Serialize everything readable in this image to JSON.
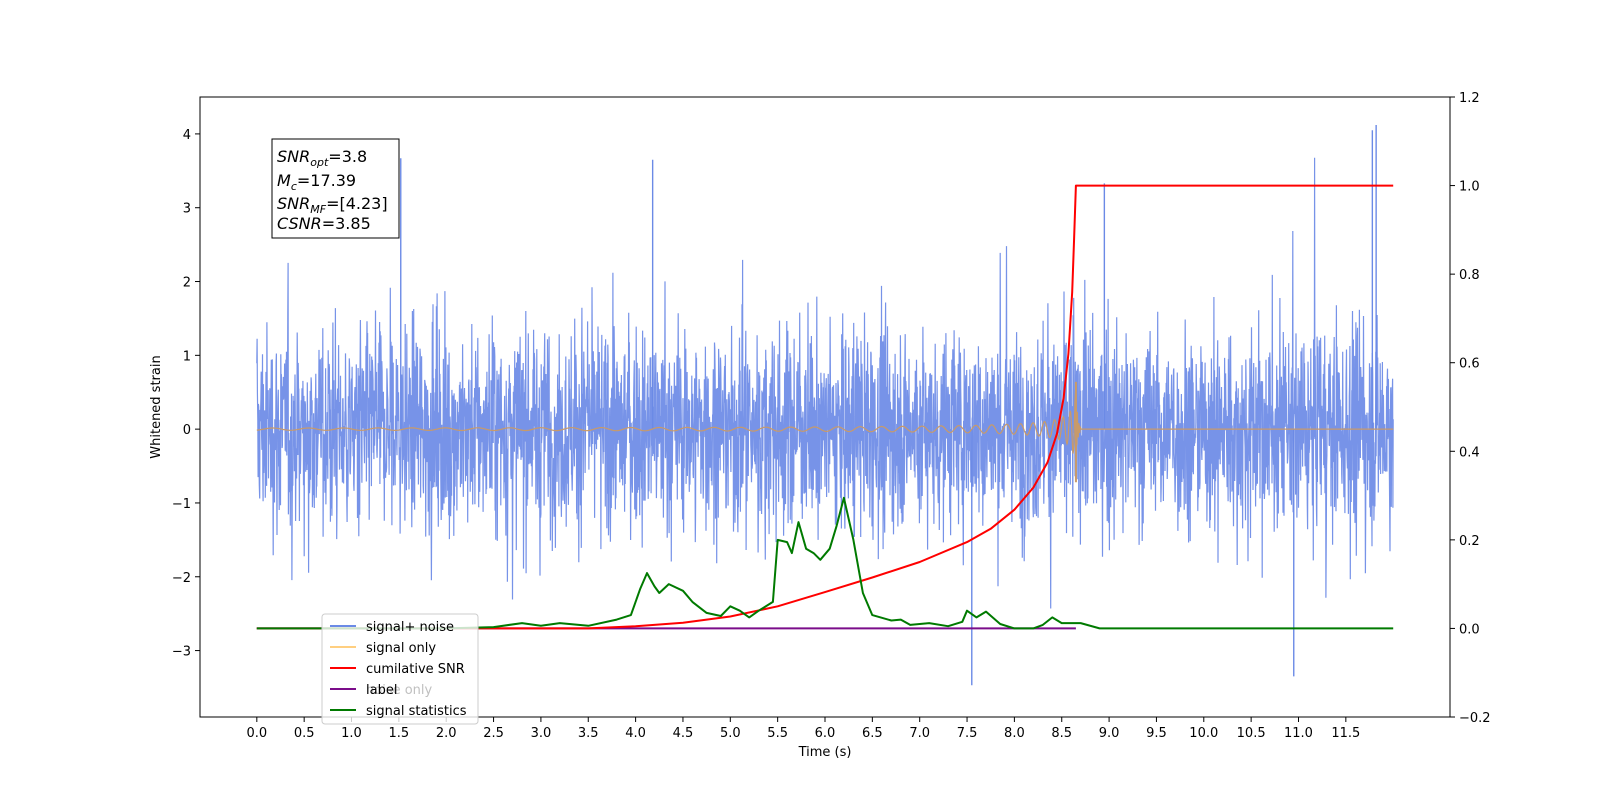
{
  "chart_data": {
    "type": "line",
    "xlabel": "Time (s)",
    "ylabel_left": "Whitened strain",
    "xlim": [
      -0.6,
      12.6
    ],
    "ylim_left": [
      -3.9,
      4.5
    ],
    "ylim_right": [
      -0.2,
      1.2
    ],
    "x_ticks": [
      0.0,
      0.5,
      1.0,
      1.5,
      2.0,
      2.5,
      3.0,
      3.5,
      4.0,
      4.5,
      5.0,
      5.5,
      6.0,
      6.5,
      7.0,
      7.5,
      8.0,
      8.5,
      9.0,
      9.5,
      10.0,
      10.5,
      11.0,
      11.5
    ],
    "x_tick_labels": [
      "0.0",
      "0.5",
      "1.0",
      "1.5",
      "2.0",
      "2.5",
      "3.0",
      "3.5",
      "4.0",
      "4.5",
      "5.0",
      "5.5",
      "6.0",
      "6.5",
      "7.0",
      "7.5",
      "8.0",
      "8.5",
      "9.0",
      "9.5",
      "10.0",
      "10.5",
      "11.0",
      "11.5"
    ],
    "y_left_ticks": [
      -3,
      -2,
      -1,
      0,
      1,
      2,
      3,
      4
    ],
    "y_left_tick_labels": [
      "−3",
      "−2",
      "−1",
      "0",
      "1",
      "2",
      "3",
      "4"
    ],
    "y_right_ticks": [
      -0.2,
      0.0,
      0.2,
      0.4,
      0.6,
      0.8,
      1.0,
      1.2
    ],
    "y_right_tick_labels": [
      "−0.2",
      "0.0",
      "0.2",
      "0.4",
      "0.6",
      "0.8",
      "1.0",
      "1.2"
    ],
    "grid": false,
    "legend_position": "lower-left",
    "series": [
      {
        "name": "signal+ noise",
        "axis": "left",
        "color": "#6b8ae6",
        "style": "noise",
        "x_range": [
          0.0,
          12.0
        ],
        "amplitude_envelope": [
          -2.7,
          3.7
        ],
        "notable_peaks": [
          {
            "x": 11.82,
            "y": 4.12
          },
          {
            "x": 11.78,
            "y": 4.05
          },
          {
            "x": 7.55,
            "y": -3.47
          },
          {
            "x": 10.95,
            "y": -3.35
          },
          {
            "x": 4.18,
            "y": 3.65
          },
          {
            "x": 1.52,
            "y": 3.67
          },
          {
            "x": 8.95,
            "y": 3.33
          }
        ]
      },
      {
        "name": "signal only",
        "axis": "left",
        "color": "#ffa500",
        "style": "chirp",
        "x_range": [
          0.0,
          12.0
        ],
        "merger_time": 8.65,
        "peak_amplitude": [
          -0.72,
          0.64
        ]
      },
      {
        "name": "cumilative SNR",
        "axis": "right",
        "color": "#ff0000",
        "style": "line",
        "points": [
          [
            0.0,
            0.0
          ],
          [
            3.5,
            0.0
          ],
          [
            4.0,
            0.005
          ],
          [
            4.5,
            0.013
          ],
          [
            5.0,
            0.027
          ],
          [
            5.5,
            0.05
          ],
          [
            6.0,
            0.082
          ],
          [
            6.5,
            0.115
          ],
          [
            7.0,
            0.15
          ],
          [
            7.5,
            0.195
          ],
          [
            7.75,
            0.225
          ],
          [
            8.0,
            0.268
          ],
          [
            8.2,
            0.318
          ],
          [
            8.35,
            0.375
          ],
          [
            8.45,
            0.44
          ],
          [
            8.52,
            0.52
          ],
          [
            8.57,
            0.62
          ],
          [
            8.61,
            0.76
          ],
          [
            8.63,
            0.88
          ],
          [
            8.65,
            1.0
          ],
          [
            12.0,
            1.0
          ]
        ]
      },
      {
        "name": "label",
        "axis": "right",
        "color": "#7b0d8a",
        "style": "line",
        "points": [
          [
            0.0,
            0.0
          ],
          [
            8.65,
            0.0
          ]
        ]
      },
      {
        "name": "noise only",
        "axis": "left",
        "color": "#c8c8c8",
        "style": "hidden",
        "points": []
      },
      {
        "name": "signal statistics",
        "axis": "right",
        "color": "#007a00",
        "style": "line",
        "points": [
          [
            0.0,
            0.0
          ],
          [
            2.0,
            0.0
          ],
          [
            2.5,
            0.003
          ],
          [
            2.8,
            0.012
          ],
          [
            3.0,
            0.006
          ],
          [
            3.2,
            0.012
          ],
          [
            3.5,
            0.006
          ],
          [
            3.8,
            0.02
          ],
          [
            3.95,
            0.03
          ],
          [
            4.05,
            0.09
          ],
          [
            4.12,
            0.125
          ],
          [
            4.2,
            0.095
          ],
          [
            4.25,
            0.08
          ],
          [
            4.35,
            0.1
          ],
          [
            4.5,
            0.085
          ],
          [
            4.6,
            0.06
          ],
          [
            4.75,
            0.035
          ],
          [
            4.9,
            0.028
          ],
          [
            5.0,
            0.05
          ],
          [
            5.1,
            0.04
          ],
          [
            5.2,
            0.025
          ],
          [
            5.3,
            0.04
          ],
          [
            5.45,
            0.06
          ],
          [
            5.5,
            0.2
          ],
          [
            5.6,
            0.195
          ],
          [
            5.65,
            0.17
          ],
          [
            5.72,
            0.24
          ],
          [
            5.8,
            0.18
          ],
          [
            5.88,
            0.17
          ],
          [
            5.95,
            0.155
          ],
          [
            6.05,
            0.18
          ],
          [
            6.12,
            0.23
          ],
          [
            6.2,
            0.295
          ],
          [
            6.3,
            0.2
          ],
          [
            6.4,
            0.08
          ],
          [
            6.5,
            0.03
          ],
          [
            6.7,
            0.018
          ],
          [
            6.8,
            0.02
          ],
          [
            6.9,
            0.008
          ],
          [
            7.1,
            0.012
          ],
          [
            7.3,
            0.005
          ],
          [
            7.45,
            0.015
          ],
          [
            7.5,
            0.04
          ],
          [
            7.6,
            0.025
          ],
          [
            7.7,
            0.038
          ],
          [
            7.85,
            0.01
          ],
          [
            8.0,
            0.0
          ],
          [
            8.2,
            0.0
          ],
          [
            8.3,
            0.008
          ],
          [
            8.4,
            0.025
          ],
          [
            8.5,
            0.012
          ],
          [
            8.7,
            0.012
          ],
          [
            8.9,
            0.0
          ],
          [
            12.0,
            0.0
          ]
        ]
      }
    ],
    "legend": [
      "signal+ noise",
      "signal only",
      "cumilative SNR",
      "label",
      "signal statistics"
    ],
    "legend_overlap_text": {
      "label_line": "label",
      "hidden_suffix": "noise only"
    }
  },
  "annotation": {
    "snr_opt_sym": "SNR",
    "snr_opt_sub": "opt",
    "snr_opt_val": "=3.8",
    "mc_sym": "M",
    "mc_sub": "c",
    "mc_val": "=17.39",
    "snr_mf_sym": "SNR",
    "snr_mf_sub": "MF",
    "snr_mf_val": "=[4.23]",
    "csnr_sym": "CSNR",
    "csnr_val": "=3.85"
  }
}
